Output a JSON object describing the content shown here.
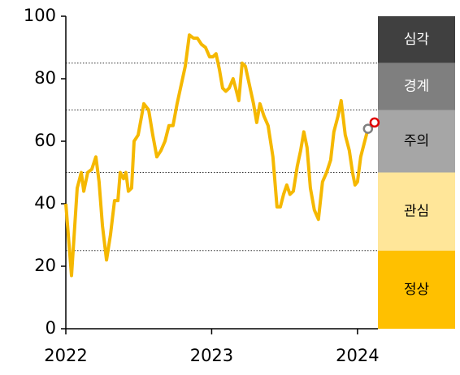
{
  "chart_data": {
    "type": "line",
    "x": [
      2022.0,
      2022.039,
      2022.078,
      2022.106,
      2022.123,
      2022.15,
      2022.178,
      2022.206,
      2022.228,
      2022.251,
      2022.279,
      2022.306,
      2022.334,
      2022.357,
      2022.373,
      2022.396,
      2022.412,
      2022.429,
      2022.451,
      2022.468,
      2022.496,
      2022.535,
      2022.568,
      2022.596,
      2022.624,
      2022.652,
      2022.68,
      2022.707,
      2022.735,
      2022.763,
      2022.791,
      2022.819,
      2022.847,
      2022.875,
      2022.902,
      2022.93,
      2022.958,
      2022.986,
      2023.008,
      2023.03,
      2023.053,
      2023.075,
      2023.097,
      2023.12,
      2023.147,
      2023.17,
      2023.186,
      2023.209,
      2023.231,
      2023.259,
      2023.287,
      2023.309,
      2023.331,
      2023.359,
      2023.387,
      2023.42,
      2023.448,
      2023.471,
      2023.493,
      2023.515,
      2023.537,
      2023.56,
      2023.587,
      2023.61,
      2023.632,
      2023.654,
      2023.677,
      2023.704,
      2023.732,
      2023.76,
      2023.788,
      2023.816,
      2023.838,
      2023.866,
      2023.888,
      2023.916,
      2023.944,
      2023.966,
      2023.983,
      2024.0,
      2024.022,
      2024.044,
      2024.072
    ],
    "series": [
      {
        "color": "#f5b800",
        "values": [
          40,
          17,
          45,
          50,
          44,
          50,
          51,
          55,
          47,
          33,
          22,
          30,
          41,
          41,
          50,
          48,
          50,
          44,
          45,
          60,
          62,
          72,
          70,
          62,
          55,
          57,
          60,
          65,
          65,
          72,
          78,
          84,
          94,
          93,
          93,
          91,
          90,
          87,
          87,
          88,
          83,
          77,
          76,
          77,
          80,
          76,
          73,
          85,
          84,
          78,
          72,
          66,
          72,
          68,
          65,
          55,
          39,
          39,
          43,
          46,
          43,
          44,
          52,
          57,
          63,
          58,
          45,
          38,
          35,
          47,
          50,
          54,
          63,
          68,
          73,
          62,
          57,
          50,
          46,
          47,
          55,
          59,
          64
        ]
      }
    ],
    "markers": [
      {
        "x": 2024.072,
        "value": 64,
        "color": "#808080"
      },
      {
        "x": 2024.117,
        "value": 66,
        "color": "#e00000"
      }
    ],
    "bands": [
      {
        "label": "심각",
        "from": 85,
        "to": 100,
        "color": "#404040",
        "text_color": "#ffffff"
      },
      {
        "label": "경계",
        "from": 70,
        "to": 85,
        "color": "#7f7f7f",
        "text_color": "#ffffff"
      },
      {
        "label": "주의",
        "from": 50,
        "to": 70,
        "color": "#a6a6a6",
        "text_color": "#000000"
      },
      {
        "label": "관심",
        "from": 25,
        "to": 50,
        "color": "#ffe699",
        "text_color": "#000000"
      },
      {
        "label": "정상",
        "from": 0,
        "to": 25,
        "color": "#ffc000",
        "text_color": "#000000"
      }
    ],
    "xlim": [
      2022,
      2024.14
    ],
    "xticks": [
      2022,
      2023,
      2024
    ],
    "ylim": [
      0,
      100
    ],
    "yticks": [
      0,
      20,
      40,
      60,
      80,
      100
    ]
  }
}
